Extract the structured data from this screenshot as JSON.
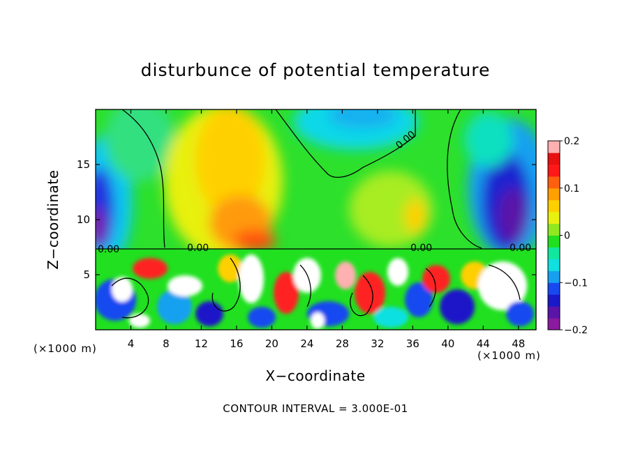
{
  "chart_data": {
    "type": "heatmap",
    "title": "disturbunce of potential temperature",
    "xlabel": "X−coordinate",
    "ylabel": "Z−coordinate",
    "x_unit": "(×1000 m)",
    "x_ticks": [
      4,
      8,
      12,
      16,
      20,
      24,
      28,
      32,
      36,
      40,
      44,
      48
    ],
    "y_ticks": [
      5,
      10,
      15
    ],
    "xlim": [
      0,
      50
    ],
    "ylim": [
      0,
      20
    ],
    "colorbar": {
      "ticks": [
        0.2,
        0.1,
        0,
        -0.1,
        -0.2
      ],
      "tick_labels": [
        "0.2",
        "0.1",
        "0",
        "−0.1",
        "−0.2"
      ],
      "range": [
        -0.2,
        0.2
      ],
      "colors": [
        "#8a1a9e",
        "#5a14a8",
        "#1a18c8",
        "#1848f0",
        "#18a0f0",
        "#10e0e0",
        "#10e8a0",
        "#20e020",
        "#90e820",
        "#e8f010",
        "#ffd000",
        "#ffa000",
        "#ff6010",
        "#ff1818",
        "#e81010",
        "#ffb0b0"
      ]
    },
    "contour_interval_note": "CONTOUR INTERVAL = 3.000E-01",
    "contour_labels": [
      "0.00",
      "0.00",
      "0.00",
      "0.00",
      "0.00"
    ],
    "grid": false
  }
}
